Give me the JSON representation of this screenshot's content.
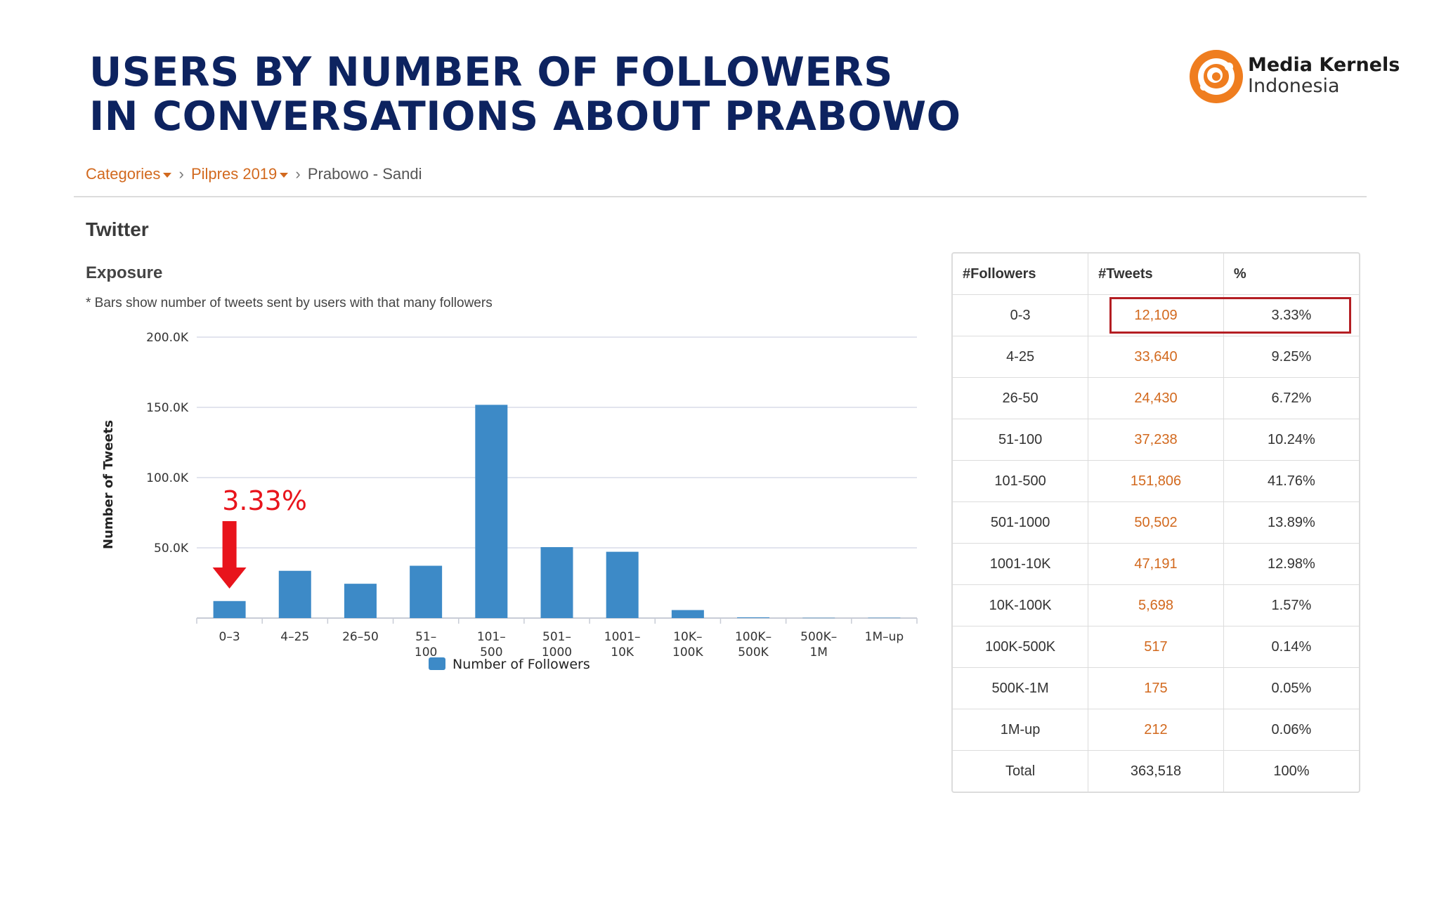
{
  "header": {
    "title_line1": "USERS BY NUMBER OF FOLLOWERS",
    "title_line2": "IN CONVERSATIONS ABOUT PRABOWO"
  },
  "logo": {
    "name": "Media Kernels",
    "sub": "Indonesia",
    "color": "#ef7d1f"
  },
  "breadcrumb": {
    "item1": "Categories",
    "item2": "Pilpres 2019",
    "item3": "Prabowo - Sandi"
  },
  "panel": {
    "platform": "Twitter",
    "section": "Exposure",
    "note": "* Bars show number of tweets sent by users with that many followers"
  },
  "chart_data": {
    "type": "bar",
    "title": "",
    "xlabel": "",
    "ylabel": "Number of Tweets",
    "ylim": [
      0,
      200000
    ],
    "yticks": [
      "50.0K",
      "100.0K",
      "150.0K",
      "200.0K"
    ],
    "ytick_values": [
      50000,
      100000,
      150000,
      200000
    ],
    "categories": [
      [
        "0–3"
      ],
      [
        "4–25"
      ],
      [
        "26–50"
      ],
      [
        "51–",
        "100"
      ],
      [
        "101–",
        "500"
      ],
      [
        "501–",
        "1000"
      ],
      [
        "1001–",
        "10K"
      ],
      [
        "10K–",
        "100K"
      ],
      [
        "100K–",
        "500K"
      ],
      [
        "500K–",
        "1M"
      ],
      [
        "1M–up"
      ]
    ],
    "series": [
      {
        "name": "Number of Followers",
        "color": "#3d8ac7",
        "values": [
          12109,
          33640,
          24430,
          37238,
          151806,
          50502,
          47191,
          5698,
          517,
          175,
          212
        ]
      }
    ],
    "legend": "bottom",
    "annotation": {
      "text": "3.33%",
      "target": "0–3",
      "color": "#e8141c"
    }
  },
  "table": {
    "headers": [
      "#Followers",
      "#Tweets",
      "%"
    ],
    "rows": [
      [
        "0-3",
        "12,109",
        "3.33%"
      ],
      [
        "4-25",
        "33,640",
        "9.25%"
      ],
      [
        "26-50",
        "24,430",
        "6.72%"
      ],
      [
        "51-100",
        "37,238",
        "10.24%"
      ],
      [
        "101-500",
        "151,806",
        "41.76%"
      ],
      [
        "501-1000",
        "50,502",
        "13.89%"
      ],
      [
        "1001-10K",
        "47,191",
        "12.98%"
      ],
      [
        "10K-100K",
        "5,698",
        "1.57%"
      ],
      [
        "100K-500K",
        "517",
        "0.14%"
      ],
      [
        "500K-1M",
        "175",
        "0.05%"
      ],
      [
        "1M-up",
        "212",
        "0.06%"
      ]
    ],
    "total": [
      "Total",
      "363,518",
      "100%"
    ],
    "highlight_color": "#b41e23"
  }
}
